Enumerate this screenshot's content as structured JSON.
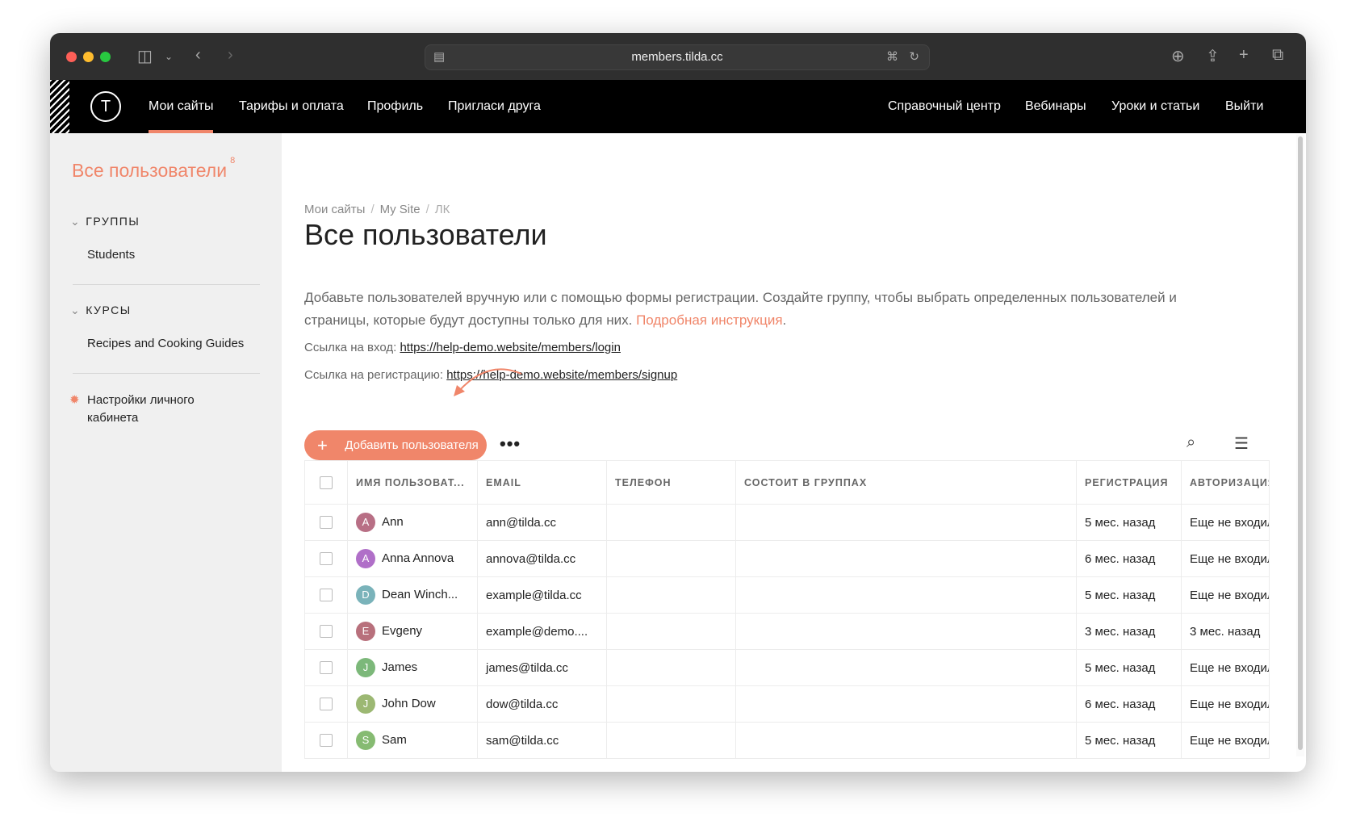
{
  "browser": {
    "url": "members.tilda.cc"
  },
  "nav": {
    "left": [
      "Мои сайты",
      "Тарифы и оплата",
      "Профиль",
      "Пригласи друга"
    ],
    "right": [
      "Справочный центр",
      "Вебинары",
      "Уроки и статьи",
      "Выйти"
    ],
    "logo": "T"
  },
  "sidebar": {
    "title": "Все пользователи",
    "count": "8",
    "groups_heading": "ГРУППЫ",
    "groups": [
      "Students"
    ],
    "courses_heading": "КУРСЫ",
    "courses": [
      "Recipes and Cooking Guides"
    ],
    "settings": "Настройки личного кабинета"
  },
  "main": {
    "breadcrumb": [
      "Мои сайты",
      "My Site",
      "ЛК"
    ],
    "title": "Все пользователи",
    "description": "Добавьте пользователей вручную или с помощью формы регистрации. Создайте группу, чтобы выбрать определенных пользователей и страницы, которые будут доступны только для них.",
    "instruction_link": "Подробная инструкция",
    "login_label": "Ссылка на вход:",
    "login_url": "https://help-demo.website/members/login",
    "signup_label": "Ссылка на регистрацию:",
    "signup_url": "https://help-demo.website/members/signup",
    "add_button": "Добавить пользователя",
    "accent": "#f0866a"
  },
  "table": {
    "headers": [
      "ИМЯ ПОЛЬЗОВАТ...",
      "EMAIL",
      "ТЕЛЕФОН",
      "СОСТОИТ В ГРУППАХ",
      "РЕГИСТРАЦИЯ",
      "АВТОРИЗАЦИЯ"
    ],
    "rows": [
      {
        "initial": "A",
        "color": "#b86f85",
        "name": "Ann",
        "email": "ann@tilda.cc",
        "phone": "",
        "groups": "",
        "reg": "5 мес. назад",
        "auth": "Еще не входил"
      },
      {
        "initial": "A",
        "color": "#b06fc8",
        "name": "Anna Annova",
        "email": "annova@tilda.cc",
        "phone": "",
        "groups": "",
        "reg": "6 мес. назад",
        "auth": "Еще не входил"
      },
      {
        "initial": "D",
        "color": "#7ab3ba",
        "name": "Dean Winch...",
        "email": "example@tilda.cc",
        "phone": "",
        "groups": "",
        "reg": "5 мес. назад",
        "auth": "Еще не входил"
      },
      {
        "initial": "E",
        "color": "#b8707c",
        "name": "Evgeny",
        "email": "example@demo....",
        "phone": "",
        "groups": "",
        "reg": "3 мес. назад",
        "auth": "3 мес. назад"
      },
      {
        "initial": "J",
        "color": "#7cb87a",
        "name": "James",
        "email": "james@tilda.cc",
        "phone": "",
        "groups": "",
        "reg": "5 мес. назад",
        "auth": "Еще не входил"
      },
      {
        "initial": "J",
        "color": "#9cb873",
        "name": "John Dow",
        "email": "dow@tilda.cc",
        "phone": "",
        "groups": "",
        "reg": "6 мес. назад",
        "auth": "Еще не входил"
      },
      {
        "initial": "S",
        "color": "#86bb72",
        "name": "Sam",
        "email": "sam@tilda.cc",
        "phone": "",
        "groups": "",
        "reg": "5 мес. назад",
        "auth": "Еще не входил"
      }
    ]
  }
}
